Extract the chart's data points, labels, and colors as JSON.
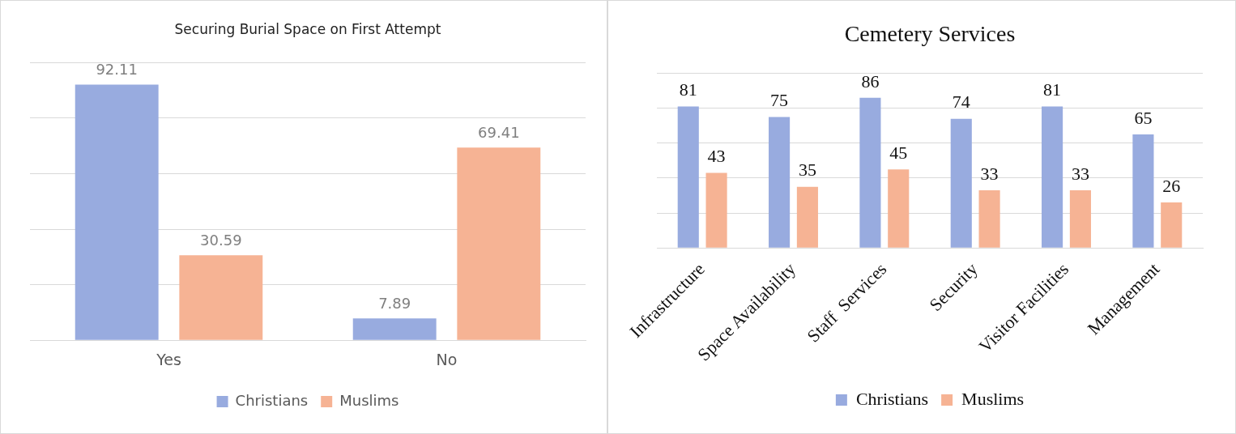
{
  "chart_data": [
    {
      "type": "bar",
      "title": "Securing Burial Space on First Attempt",
      "categories": [
        "Yes",
        "No"
      ],
      "series": [
        {
          "name": "Christians",
          "color": "#98abdf",
          "values": [
            92.11,
            7.89
          ]
        },
        {
          "name": "Muslims",
          "color": "#f6b394",
          "values": [
            30.59,
            69.41
          ]
        }
      ],
      "tick_labels": "x",
      "grid": "y",
      "legend": "bottom",
      "data_labels": true
    },
    {
      "type": "bar",
      "title": "Cemetery Services",
      "categories": [
        "Infrastructure",
        "Space Availability",
        "Staff  Services",
        "Security",
        "Visitor Facilities",
        "Management"
      ],
      "series": [
        {
          "name": "Christians",
          "color": "#98abdf",
          "values": [
            81,
            75,
            86,
            74,
            81,
            65
          ]
        },
        {
          "name": "Muslims",
          "color": "#f6b394",
          "values": [
            43,
            35,
            45,
            33,
            33,
            26
          ]
        }
      ],
      "tick_labels": "x",
      "grid": "y",
      "legend": "bottom",
      "data_labels": true
    }
  ]
}
